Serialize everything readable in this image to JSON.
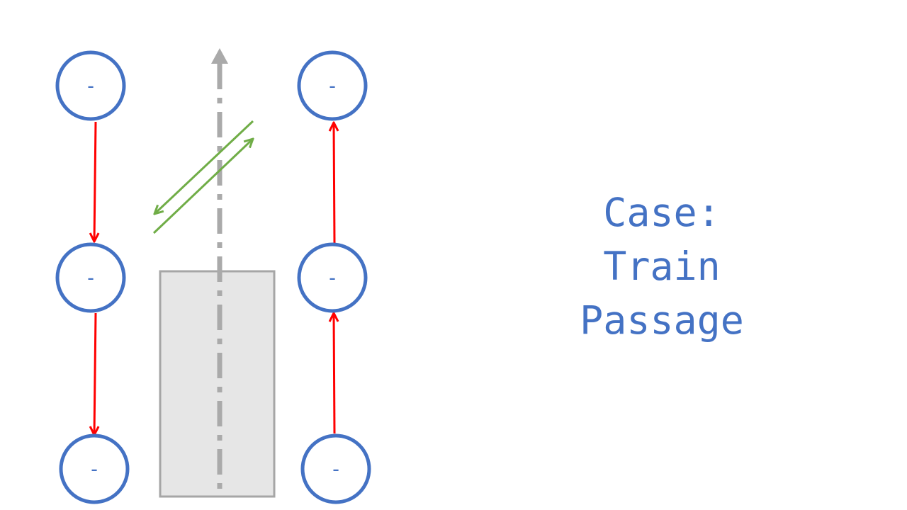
{
  "title_lines": [
    "Case:",
    "Train",
    "Passage"
  ],
  "nodes": [
    {
      "id": "left-top",
      "label": "-"
    },
    {
      "id": "left-middle",
      "label": "-"
    },
    {
      "id": "left-bottom",
      "label": "-"
    },
    {
      "id": "right-top",
      "label": "-"
    },
    {
      "id": "right-middle",
      "label": "-"
    },
    {
      "id": "right-bottom",
      "label": "-"
    }
  ],
  "colors": {
    "node": "#4472c4",
    "charge_flow": "#ff0000",
    "exchange": "#70ad47",
    "track": "#aaaaaa",
    "train_fill": "#e6e6e6",
    "train_stroke": "#a6a6a6"
  }
}
